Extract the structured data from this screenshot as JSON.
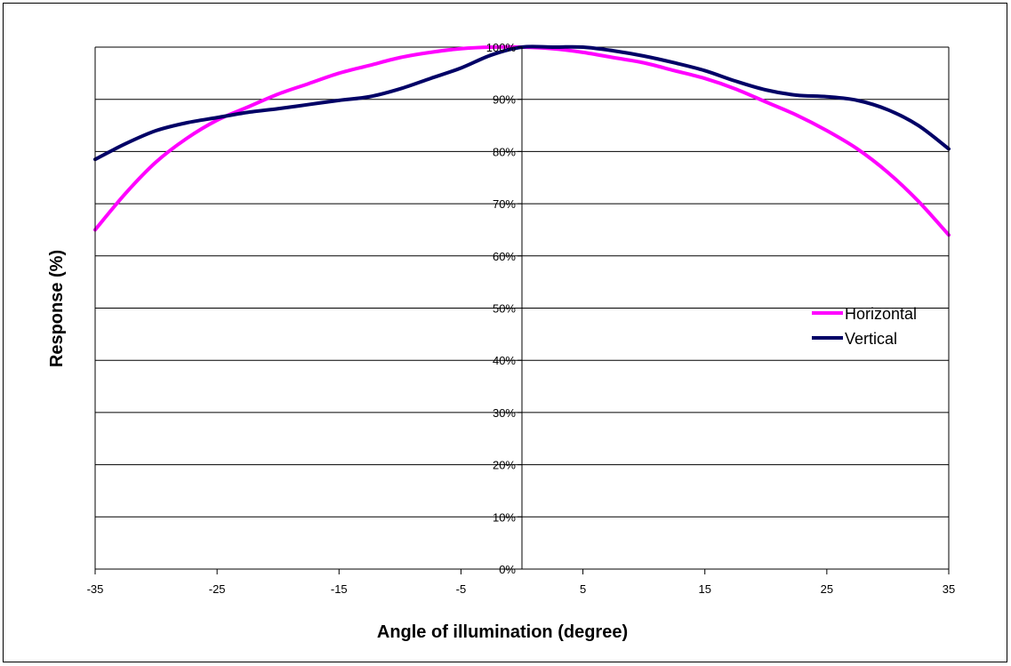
{
  "chart_data": {
    "type": "line",
    "xlabel": "Angle of illumination (degree)",
    "ylabel": "Response (%)",
    "xlim": [
      -35,
      35
    ],
    "ylim": [
      0,
      100
    ],
    "x_ticks": [
      "-35",
      "-25",
      "-15",
      "-5",
      "5",
      "15",
      "25",
      "35"
    ],
    "y_ticks": [
      "0%",
      "10%",
      "20%",
      "30%",
      "40%",
      "50%",
      "60%",
      "70%",
      "80%",
      "90%",
      "100%"
    ],
    "grid": "horizontal",
    "legend_position": "right",
    "series": [
      {
        "name": "Horizontal",
        "color": "#ff00ff",
        "points": [
          [
            -35,
            65
          ],
          [
            -32.5,
            72
          ],
          [
            -30,
            78
          ],
          [
            -27.5,
            82.5
          ],
          [
            -25,
            86
          ],
          [
            -22.5,
            88.5
          ],
          [
            -20,
            91
          ],
          [
            -17.5,
            93
          ],
          [
            -15,
            95
          ],
          [
            -12.5,
            96.5
          ],
          [
            -10,
            98
          ],
          [
            -7.5,
            99
          ],
          [
            -5,
            99.7
          ],
          [
            -2.5,
            100
          ],
          [
            0,
            100
          ],
          [
            2.5,
            99.7
          ],
          [
            5,
            99
          ],
          [
            7.5,
            98
          ],
          [
            10,
            97
          ],
          [
            12.5,
            95.5
          ],
          [
            15,
            94
          ],
          [
            17.5,
            92
          ],
          [
            20,
            89.5
          ],
          [
            22.5,
            87
          ],
          [
            25,
            84
          ],
          [
            27.5,
            80.5
          ],
          [
            30,
            76
          ],
          [
            32.5,
            70.5
          ],
          [
            35,
            64
          ]
        ]
      },
      {
        "name": "Vertical",
        "color": "#000066",
        "points": [
          [
            -35,
            78.5
          ],
          [
            -32.5,
            81.5
          ],
          [
            -30,
            84
          ],
          [
            -27.5,
            85.5
          ],
          [
            -25,
            86.5
          ],
          [
            -22.5,
            87.5
          ],
          [
            -20,
            88.2
          ],
          [
            -17.5,
            89
          ],
          [
            -15,
            89.8
          ],
          [
            -12.5,
            90.5
          ],
          [
            -10,
            92
          ],
          [
            -7.5,
            94
          ],
          [
            -5,
            96
          ],
          [
            -2.5,
            98.5
          ],
          [
            0,
            100
          ],
          [
            2.5,
            100
          ],
          [
            5,
            100
          ],
          [
            7.5,
            99.3
          ],
          [
            10,
            98.3
          ],
          [
            12.5,
            97
          ],
          [
            15,
            95.5
          ],
          [
            17.5,
            93.5
          ],
          [
            20,
            91.8
          ],
          [
            22.5,
            90.8
          ],
          [
            25,
            90.5
          ],
          [
            27.5,
            89.8
          ],
          [
            30,
            88
          ],
          [
            32.5,
            85
          ],
          [
            35,
            80.5
          ]
        ]
      }
    ]
  }
}
